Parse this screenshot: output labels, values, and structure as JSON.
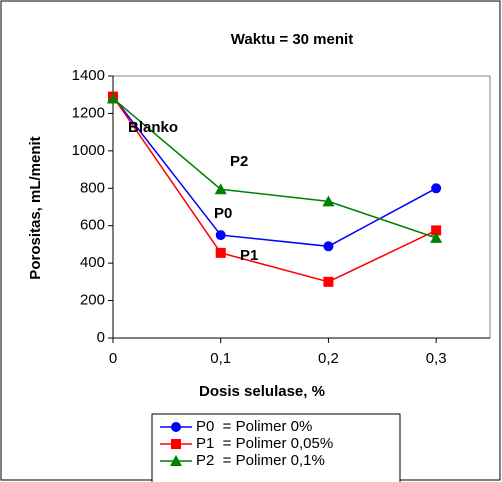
{
  "chart_data": {
    "type": "line",
    "title": "Waktu = 30 menit",
    "xlabel": "Dosis selulase, %",
    "ylabel": "Porositas, mL/menit",
    "x": [
      0,
      0.1,
      0.2,
      0.3
    ],
    "xlim": [
      0,
      0.35
    ],
    "xticks": [
      0,
      {
        "value": 0.1,
        "label": "0,1"
      },
      {
        "value": 0.2,
        "label": "0,2"
      },
      {
        "value": 0.3,
        "label": "0,3"
      }
    ],
    "ylim": [
      0,
      1400
    ],
    "yticks": [
      0,
      200,
      400,
      600,
      800,
      1000,
      1200,
      1400
    ],
    "grid": false,
    "legend": "bottom",
    "series": [
      {
        "name": "P0  = Polimer 0%",
        "color": "#0000ff",
        "marker": "circle",
        "values": [
          1290,
          550,
          490,
          800
        ]
      },
      {
        "name": "P1  = Polimer 0,05%",
        "color": "#ff0000",
        "marker": "square",
        "values": [
          1290,
          455,
          300,
          575
        ]
      },
      {
        "name": "P2  = Polimer 0,1%",
        "color": "#008000",
        "marker": "triangle",
        "values": [
          1280,
          795,
          730,
          535
        ]
      }
    ],
    "annotations": [
      "Blanko",
      "P2",
      "P0",
      "P1"
    ]
  }
}
